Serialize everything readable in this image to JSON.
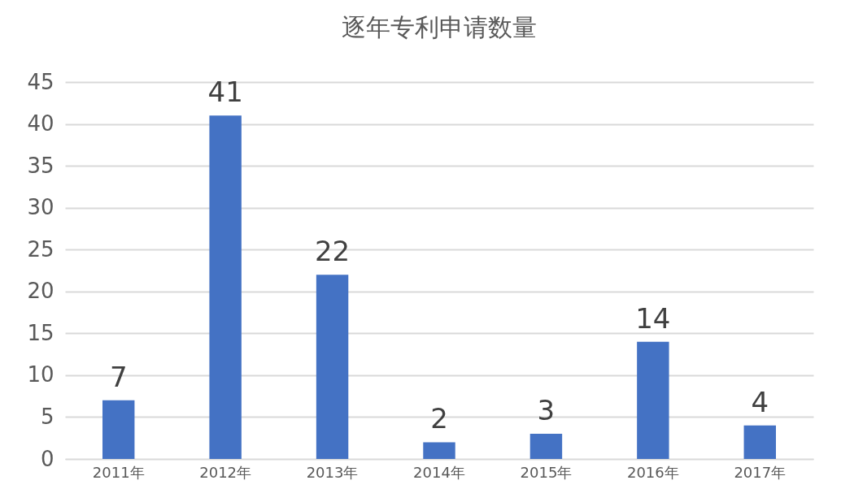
{
  "chart_data": {
    "type": "bar",
    "title": "逐年专利申请数量",
    "categories": [
      "2011年",
      "2012年",
      "2013年",
      "2014年",
      "2015年",
      "2016年",
      "2017年"
    ],
    "values": [
      7,
      41,
      22,
      2,
      3,
      14,
      4
    ],
    "color": "#4472c4",
    "ylim": [
      0,
      45
    ],
    "yticks": [
      0,
      5,
      10,
      15,
      20,
      25,
      30,
      35,
      40,
      45
    ],
    "grid": "y",
    "data_labels": true
  }
}
